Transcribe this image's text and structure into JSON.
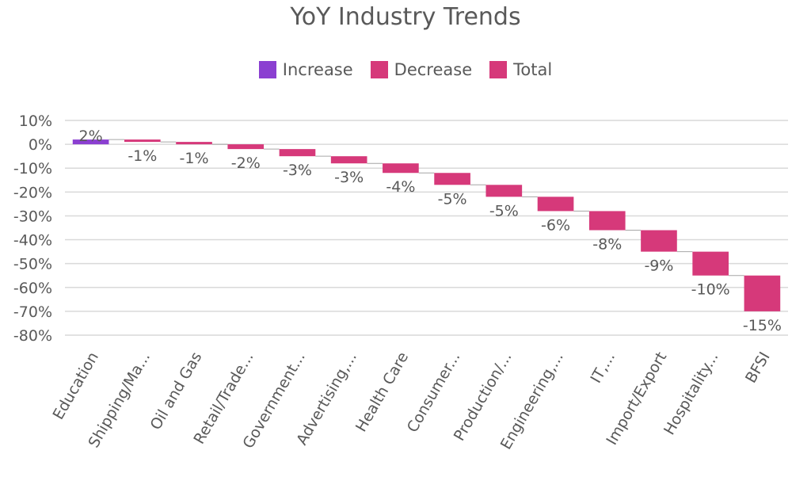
{
  "chart_data": {
    "type": "bar",
    "subtype": "waterfall",
    "title": "YoY Industry Trends",
    "xlabel": "",
    "ylabel": "",
    "ylim": [
      -80,
      10
    ],
    "y_ticks": [
      "10%",
      "0%",
      "-10%",
      "-20%",
      "-30%",
      "-40%",
      "-50%",
      "-60%",
      "-70%",
      "-80%"
    ],
    "y_tick_values": [
      10,
      0,
      -10,
      -20,
      -30,
      -40,
      -50,
      -60,
      -70,
      -80
    ],
    "grid": true,
    "legend_position": "top",
    "legend": [
      {
        "label": "Increase",
        "color": "#8b3fd1"
      },
      {
        "label": "Decrease",
        "color": "#d6397a"
      },
      {
        "label": "Total",
        "color": "#d6397a"
      }
    ],
    "categories": [
      "Education",
      "Shipping/Ma...",
      "Oil and Gas",
      "Retail/Trade...",
      "Government...",
      "Advertising,...",
      "Health Care",
      "Consumer...",
      "Production/...",
      "Engineering,...",
      "IT,...",
      "Import/Export",
      "Hospitality...",
      "BFSI"
    ],
    "values": [
      2,
      -1,
      -1,
      -2,
      -3,
      -3,
      -4,
      -5,
      -5,
      -6,
      -8,
      -9,
      -10,
      -15
    ],
    "data_labels": [
      "2%",
      "-1%",
      "-1%",
      "-2%",
      "-3%",
      "-3%",
      "-4%",
      "-5%",
      "-5%",
      "-6%",
      "-8%",
      "-9%",
      "-10%",
      "-15%"
    ],
    "bar_types": [
      "increase",
      "decrease",
      "decrease",
      "decrease",
      "decrease",
      "decrease",
      "decrease",
      "decrease",
      "decrease",
      "decrease",
      "decrease",
      "decrease",
      "decrease",
      "decrease"
    ],
    "cumulative_end": [
      2,
      1,
      0,
      -2,
      -5,
      -8,
      -12,
      -17,
      -22,
      -28,
      -36,
      -45,
      -55,
      -70
    ],
    "colors": {
      "increase": "#8b3fd1",
      "decrease": "#d6397a",
      "total": "#d6397a",
      "grid": "#d9d9d9",
      "text": "#595959"
    }
  }
}
